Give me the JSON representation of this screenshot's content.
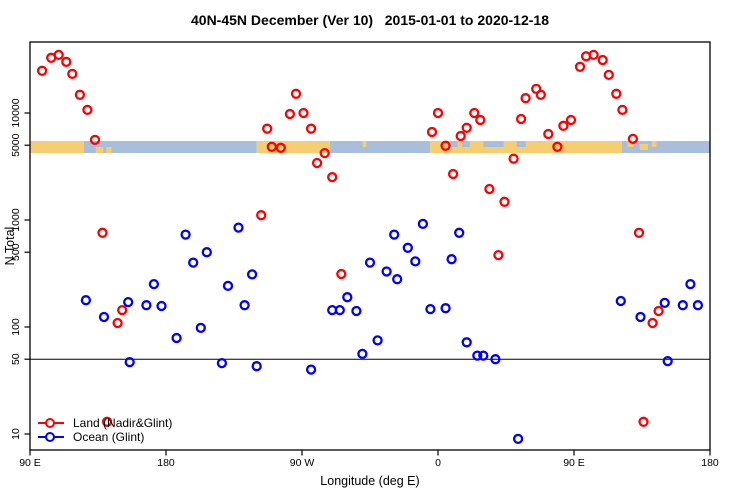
{
  "title": "40N-45N December (Ver 10)   2015-01-01 to 2020-12-18",
  "legend": {
    "items": [
      {
        "label": "Land (Nadir&Glint)",
        "color": "#FF0000"
      },
      {
        "label": "Ocean (Glint)",
        "color": "#0000FF"
      }
    ]
  },
  "chart_data": {
    "type": "scatter",
    "title": "40N-45N December (Ver 10)   2015-01-01 to 2020-12-18",
    "xlabel": "Longitude (deg E)",
    "ylabel": "N Total",
    "x_axis": {
      "note": "longitude axis wraps: spans 450 deg starting at 90E",
      "min": 90,
      "max": 540,
      "ticks": [
        {
          "pos": 90,
          "label": "90 E"
        },
        {
          "pos": 180,
          "label": "180"
        },
        {
          "pos": 270,
          "label": "90 W"
        },
        {
          "pos": 360,
          "label": "0"
        },
        {
          "pos": 450,
          "label": "90 E"
        },
        {
          "pos": 540,
          "label": "180"
        }
      ]
    },
    "y_axis": {
      "scale": "log",
      "range_approx": [
        7,
        46000
      ],
      "ticks": [
        {
          "v": 10,
          "label": "10"
        },
        {
          "v": 50,
          "label": "50"
        },
        {
          "v": 100,
          "label": "100"
        },
        {
          "v": 500,
          "label": "500"
        },
        {
          "v": 1000,
          "label": "1000"
        },
        {
          "v": 5000,
          "label": "5000"
        },
        {
          "v": 10000,
          "label": "10000"
        }
      ]
    },
    "ref_line_value": 50,
    "map_band": {
      "center_value": 5000,
      "land_color": "#F5CE72",
      "ocean_color": "#A9BEDA",
      "segments": [
        {
          "type": "land",
          "from": 90,
          "to": 125.7
        },
        {
          "type": "ocean",
          "from": 125.7,
          "to": 240
        },
        {
          "type": "land",
          "from": 240,
          "to": 288.5
        },
        {
          "type": "ocean",
          "from": 288.5,
          "to": 354.7
        },
        {
          "type": "land",
          "from": 354.7,
          "to": 481.7
        },
        {
          "type": "ocean",
          "from": 481.7,
          "to": 540
        }
      ],
      "patches": [
        {
          "type": "land",
          "from": 133.5,
          "to": 138.5,
          "half": "bottom"
        },
        {
          "type": "land",
          "from": 140.5,
          "to": 144,
          "half": "bottom"
        },
        {
          "type": "land",
          "from": 310,
          "to": 312.5,
          "half": "top"
        },
        {
          "type": "ocean",
          "from": 366,
          "to": 373,
          "half": "top"
        },
        {
          "type": "ocean",
          "from": 376,
          "to": 381,
          "half": "top"
        },
        {
          "type": "ocean",
          "from": 390,
          "to": 403.5,
          "half": "top"
        },
        {
          "type": "ocean",
          "from": 412,
          "to": 418,
          "half": "top"
        },
        {
          "type": "land",
          "from": 485.5,
          "to": 489.5,
          "half": "top"
        },
        {
          "type": "land",
          "from": 493.5,
          "to": 499,
          "half": "middle"
        },
        {
          "type": "land",
          "from": 501.5,
          "to": 504.5,
          "half": "top"
        }
      ]
    },
    "series": [
      {
        "name": "Land (Nadir&Glint)",
        "color": "#FF0000",
        "points": [
          [
            98,
            24800
          ],
          [
            104,
            32800
          ],
          [
            109,
            34900
          ],
          [
            114,
            30000
          ],
          [
            118,
            23200
          ],
          [
            123,
            14800
          ],
          [
            128,
            10700
          ],
          [
            133,
            5600
          ],
          [
            138,
            760
          ],
          [
            141,
            13
          ],
          [
            148,
            109
          ],
          [
            151,
            144
          ],
          [
            243,
            1110
          ],
          [
            247,
            7140
          ],
          [
            250,
            4830
          ],
          [
            256,
            4730
          ],
          [
            262,
            9790
          ],
          [
            266,
            15100
          ],
          [
            271,
            10000
          ],
          [
            276,
            7140
          ],
          [
            280,
            3410
          ],
          [
            285,
            4220
          ],
          [
            290,
            2520
          ],
          [
            296,
            313
          ],
          [
            356,
            6640
          ],
          [
            360,
            10000
          ],
          [
            365,
            4940
          ],
          [
            370,
            2690
          ],
          [
            375,
            6100
          ],
          [
            379,
            7280
          ],
          [
            384,
            10000
          ],
          [
            388,
            8600
          ],
          [
            394,
            1950
          ],
          [
            400,
            470
          ],
          [
            404,
            1480
          ],
          [
            410,
            3740
          ],
          [
            415,
            8790
          ],
          [
            418,
            13750
          ],
          [
            425,
            16800
          ],
          [
            428,
            14800
          ],
          [
            433,
            6370
          ],
          [
            439,
            4830
          ],
          [
            443,
            7600
          ],
          [
            448,
            8600
          ],
          [
            454,
            27000
          ],
          [
            458,
            33900
          ],
          [
            463,
            34900
          ],
          [
            469,
            31300
          ],
          [
            473,
            22700
          ],
          [
            478,
            15100
          ],
          [
            482,
            10700
          ],
          [
            489,
            5730
          ],
          [
            493,
            760
          ],
          [
            496,
            13
          ],
          [
            502,
            109
          ],
          [
            506,
            141
          ]
        ]
      },
      {
        "name": "Ocean (Glint)",
        "color": "#0000FF",
        "points": [
          [
            127,
            178
          ],
          [
            139,
            124
          ],
          [
            155,
            171
          ],
          [
            156,
            47
          ],
          [
            167,
            160
          ],
          [
            172,
            252
          ],
          [
            177,
            157
          ],
          [
            187,
            79
          ],
          [
            193,
            730
          ],
          [
            198,
            400
          ],
          [
            203,
            98
          ],
          [
            207,
            500
          ],
          [
            217,
            46
          ],
          [
            221,
            242
          ],
          [
            228,
            850
          ],
          [
            232,
            160
          ],
          [
            237,
            310
          ],
          [
            240,
            43
          ],
          [
            276,
            40
          ],
          [
            290,
            144
          ],
          [
            295,
            144
          ],
          [
            300,
            190
          ],
          [
            306,
            141
          ],
          [
            310,
            56
          ],
          [
            315,
            400
          ],
          [
            320,
            75
          ],
          [
            326,
            330
          ],
          [
            331,
            730
          ],
          [
            333,
            280
          ],
          [
            340,
            550
          ],
          [
            345,
            410
          ],
          [
            350,
            920
          ],
          [
            355,
            147
          ],
          [
            365,
            150
          ],
          [
            369,
            430
          ],
          [
            374,
            760
          ],
          [
            379,
            72
          ],
          [
            386,
            54
          ],
          [
            390,
            54
          ],
          [
            398,
            50
          ],
          [
            413,
            9
          ],
          [
            481,
            175
          ],
          [
            494,
            124
          ],
          [
            510,
            168
          ],
          [
            512,
            48
          ],
          [
            522,
            160
          ],
          [
            527,
            252
          ],
          [
            532,
            160
          ]
        ]
      }
    ]
  }
}
